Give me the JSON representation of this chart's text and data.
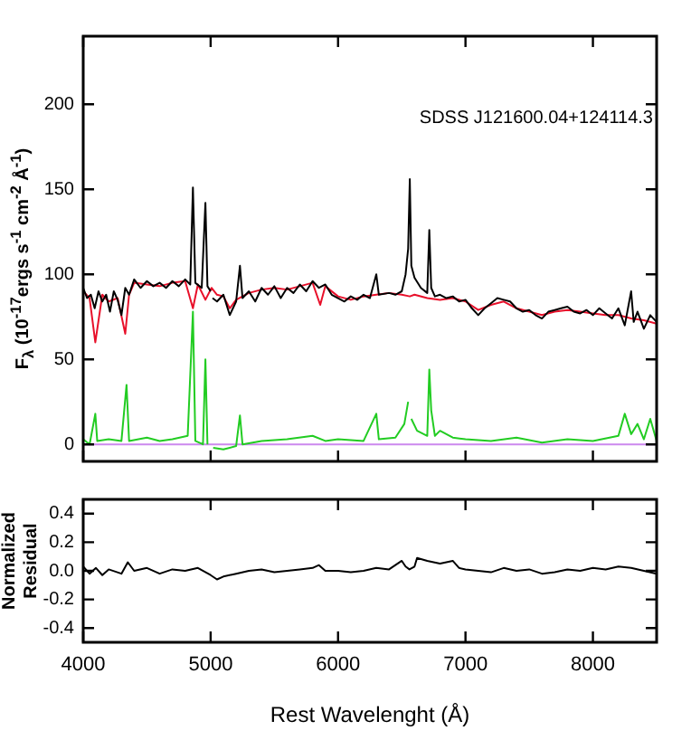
{
  "chart_data": [
    {
      "type": "line",
      "ylabel": "F$_{λ}$ (10$^{-17}$ergs s$^{-1}$ cm$^{-2}$ Å$^{-1}$)",
      "annotations": [
        "SDSS J121600.04+124114.3"
      ],
      "xlim": [
        4000,
        8500
      ],
      "xticks": [
        4000,
        5000,
        6000,
        7000,
        8000
      ],
      "ylim": [
        -10,
        240
      ],
      "yticks": [
        0,
        50,
        100,
        150,
        200
      ],
      "tick_labels": "y",
      "grid": false,
      "legend": false,
      "marker": "none",
      "line_style": "solid",
      "series": [
        {
          "color": "#000000",
          "x": [
            4000,
            4030,
            4060,
            4090,
            4120,
            4150,
            4180,
            4210,
            4240,
            4270,
            4300,
            4330,
            4360,
            4400,
            4450,
            4500,
            4550,
            4600,
            4650,
            4700,
            4750,
            4800,
            4840,
            4861,
            4880,
            4930,
            4959,
            4975,
            5000,
            5007,
            5015,
            5050,
            5100,
            5150,
            5200,
            5230,
            5250,
            5300,
            5350,
            5400,
            5450,
            5500,
            5550,
            5600,
            5650,
            5700,
            5750,
            5800,
            5850,
            5900,
            5950,
            6000,
            6050,
            6100,
            6150,
            6200,
            6250,
            6300,
            6320,
            6400,
            6450,
            6500,
            6530,
            6550,
            6563,
            6575,
            6600,
            6650,
            6700,
            6716,
            6731,
            6760,
            6800,
            6850,
            6900,
            6950,
            7000,
            7050,
            7100,
            7150,
            7200,
            7250,
            7300,
            7350,
            7400,
            7450,
            7500,
            7550,
            7600,
            7650,
            7700,
            7750,
            7800,
            7850,
            7900,
            7950,
            8000,
            8050,
            8100,
            8150,
            8200,
            8250,
            8300,
            8320,
            8350,
            8400,
            8450,
            8500
          ],
          "values": [
            92,
            86,
            88,
            80,
            90,
            84,
            88,
            78,
            90,
            85,
            76,
            92,
            88,
            97,
            92,
            96,
            93,
            95,
            92,
            96,
            93,
            97,
            94,
            151,
            95,
            92,
            142,
            93,
            90,
            null,
            86,
            84,
            88,
            76,
            84,
            105,
            86,
            90,
            84,
            92,
            88,
            93,
            86,
            92,
            89,
            94,
            90,
            96,
            92,
            94,
            88,
            86,
            84,
            87,
            85,
            88,
            86,
            100,
            88,
            89,
            88,
            90,
            100,
            115,
            156,
            105,
            98,
            92,
            89,
            126,
            92,
            87,
            88,
            86,
            87,
            84,
            85,
            80,
            76,
            80,
            83,
            86,
            85,
            84,
            80,
            78,
            79,
            76,
            74,
            78,
            79,
            80,
            81,
            78,
            77,
            79,
            76,
            80,
            77,
            74,
            80,
            70,
            90,
            72,
            78,
            68,
            76,
            72
          ]
        },
        {
          "color": "#e8102a",
          "x": [
            4000,
            4050,
            4095,
            4150,
            4200,
            4270,
            4330,
            4360,
            4400,
            4500,
            4600,
            4700,
            4800,
            4861,
            4900,
            4959,
            5007,
            5050,
            5100,
            5150,
            5200,
            5300,
            5400,
            5500,
            5600,
            5700,
            5800,
            5860,
            5900,
            6000,
            6100,
            6200,
            6300,
            6400,
            6500,
            6563,
            6600,
            6700,
            6800,
            6900,
            7000,
            7100,
            7200,
            7300,
            7400,
            7500,
            7600,
            7700,
            7800,
            7900,
            8000,
            8100,
            8200,
            8300,
            8400,
            8500
          ],
          "values": [
            90,
            86,
            60,
            88,
            84,
            86,
            65,
            88,
            95,
            94,
            93,
            95,
            96,
            80,
            94,
            85,
            92,
            88,
            87,
            80,
            85,
            89,
            91,
            92,
            91,
            93,
            95,
            82,
            93,
            87,
            85,
            87,
            88,
            89,
            88,
            87,
            88,
            86,
            85,
            86,
            84,
            79,
            82,
            84,
            80,
            78,
            76,
            78,
            79,
            78,
            77,
            76,
            76,
            74,
            73,
            71
          ]
        },
        {
          "color": "#22cc22",
          "x": [
            4000,
            4050,
            4095,
            4110,
            4200,
            4300,
            4340,
            4360,
            4500,
            4600,
            4700,
            4820,
            4861,
            4880,
            4940,
            4959,
            4975,
            5007,
            5020,
            5100,
            5200,
            5230,
            5250,
            5400,
            5600,
            5800,
            5900,
            6000,
            6200,
            6300,
            6320,
            6450,
            6520,
            6550,
            6563,
            6575,
            6620,
            6700,
            6716,
            6731,
            6760,
            6800,
            6900,
            7000,
            7200,
            7400,
            7600,
            7800,
            8000,
            8200,
            8250,
            8300,
            8350,
            8400,
            8450,
            8500
          ],
          "values": [
            3,
            0,
            18,
            2,
            3,
            2,
            35,
            2,
            4,
            2,
            3,
            5,
            78,
            2,
            0,
            50,
            0,
            null,
            -2,
            -3,
            -1,
            17,
            0,
            2,
            3,
            5,
            2,
            3,
            2,
            18,
            3,
            4,
            12,
            25,
            null,
            15,
            8,
            5,
            44,
            20,
            5,
            8,
            4,
            3,
            2,
            4,
            1,
            3,
            2,
            5,
            18,
            6,
            12,
            3,
            15,
            2
          ]
        },
        {
          "color": "#cc88ee",
          "x": [
            4000,
            8500
          ],
          "values": [
            0,
            0
          ]
        }
      ]
    },
    {
      "type": "line",
      "xlabel": "Rest Wavelenght (Å)",
      "ylabel": "Normalized\nResidual",
      "xlim": [
        4000,
        8500
      ],
      "xticks": [
        4000,
        5000,
        6000,
        7000,
        8000
      ],
      "ylim": [
        -0.5,
        0.5
      ],
      "yticks": [
        {
          "value": -0.4,
          "label": "-0.4"
        },
        {
          "value": -0.2,
          "label": "-0.2"
        },
        {
          "value": 0,
          "label": "0.0"
        },
        0.2,
        0.4
      ],
      "grid": false,
      "legend": false,
      "marker": "none",
      "line_style": "solid",
      "series": [
        {
          "color": "#000000",
          "x": [
            4000,
            4050,
            4100,
            4150,
            4200,
            4300,
            4350,
            4400,
            4500,
            4600,
            4700,
            4800,
            4900,
            5000,
            5050,
            5100,
            5200,
            5300,
            5400,
            5500,
            5600,
            5700,
            5800,
            5850,
            5900,
            6000,
            6100,
            6200,
            6300,
            6400,
            6450,
            6500,
            6530,
            6560,
            6600,
            6620,
            6700,
            6800,
            6900,
            6950,
            7000,
            7100,
            7200,
            7300,
            7400,
            7500,
            7600,
            7700,
            7800,
            7900,
            8000,
            8100,
            8200,
            8300,
            8400,
            8500
          ],
          "values": [
            0.03,
            -0.02,
            0.02,
            -0.03,
            0.01,
            -0.02,
            0.06,
            0,
            0.02,
            -0.02,
            0.01,
            0,
            0.02,
            -0.03,
            -0.06,
            -0.04,
            -0.02,
            0,
            0.01,
            -0.01,
            0,
            0.01,
            0.02,
            0.04,
            0,
            0,
            -0.01,
            0,
            0.02,
            0.01,
            0.04,
            0.07,
            0.03,
            0.01,
            0.03,
            0.09,
            0.07,
            0.05,
            0.07,
            0.02,
            0.01,
            0,
            -0.01,
            0.02,
            0,
            0.01,
            -0.02,
            -0.01,
            0.01,
            0,
            0.02,
            0.01,
            0.03,
            0.02,
            0,
            -0.02
          ]
        }
      ]
    }
  ]
}
